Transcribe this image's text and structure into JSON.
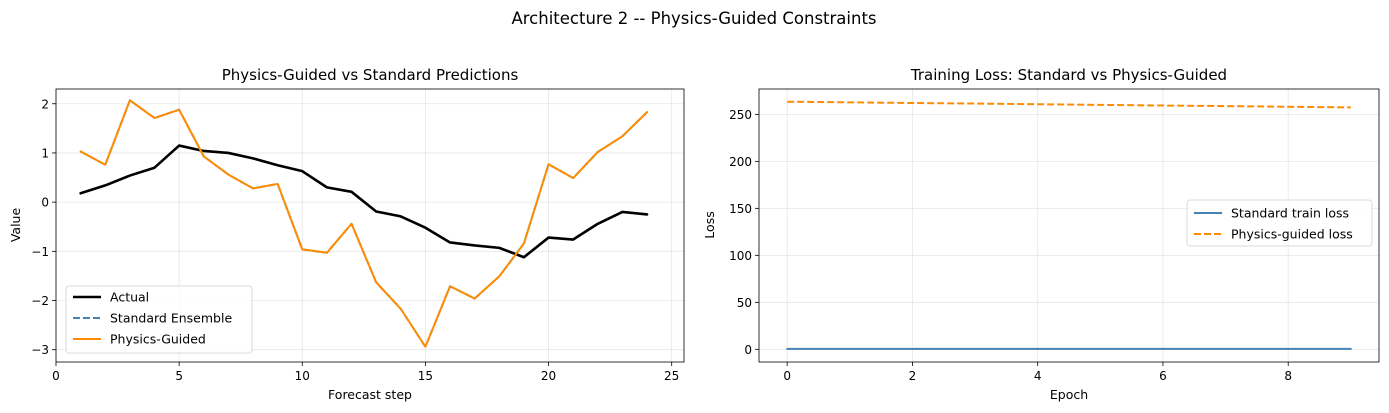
{
  "suptitle": "Architecture 2 -- Physics-Guided Constraints",
  "colors": {
    "actual": "#000000",
    "standard": "#4682b4",
    "physics": "#ff8c00"
  },
  "chart_data": [
    {
      "type": "line",
      "title": "Physics-Guided vs Standard Predictions",
      "xlabel": "Forecast step",
      "ylabel": "Value",
      "xlim": [
        0,
        25.5
      ],
      "ylim": [
        -3.25,
        2.3
      ],
      "xticks": [
        0,
        5,
        10,
        15,
        20,
        25
      ],
      "yticks": [
        -3,
        -2,
        -1,
        0,
        1,
        2
      ],
      "grid": true,
      "legend_position": "lower-left",
      "x": [
        1,
        2,
        3,
        4,
        5,
        6,
        7,
        8,
        9,
        10,
        11,
        12,
        13,
        14,
        15,
        16,
        17,
        18,
        19,
        20,
        21,
        22,
        23,
        24
      ],
      "series": [
        {
          "name": "Actual",
          "style": "solid",
          "color": "#000000",
          "values": [
            0.18,
            0.34,
            0.54,
            0.7,
            1.15,
            1.04,
            1.0,
            0.89,
            0.75,
            0.63,
            0.3,
            0.21,
            -0.19,
            -0.29,
            -0.52,
            -0.82,
            -0.88,
            -0.93,
            -1.12,
            -0.72,
            -0.76,
            -0.44,
            -0.2,
            -0.25
          ]
        },
        {
          "name": "Standard Ensemble",
          "style": "dashed",
          "color": "#4682b4",
          "values": [
            1.03,
            0.76,
            2.07,
            1.71,
            1.88,
            0.93,
            0.56,
            0.28,
            0.37,
            -0.96,
            -1.03,
            -0.44,
            -1.63,
            -2.17,
            -2.94,
            -1.71,
            -1.96,
            -1.51,
            -0.84,
            0.77,
            0.49,
            1.02,
            1.34,
            1.83
          ]
        },
        {
          "name": "Physics-Guided",
          "style": "solid",
          "color": "#ff8c00",
          "values": [
            1.03,
            0.76,
            2.07,
            1.71,
            1.88,
            0.93,
            0.56,
            0.28,
            0.37,
            -0.96,
            -1.03,
            -0.44,
            -1.63,
            -2.17,
            -2.94,
            -1.71,
            -1.96,
            -1.51,
            -0.84,
            0.77,
            0.49,
            1.02,
            1.34,
            1.83
          ]
        }
      ]
    },
    {
      "type": "line",
      "title": "Training Loss: Standard vs Physics-Guided",
      "xlabel": "Epoch",
      "ylabel": "Loss",
      "xlim": [
        -0.45,
        9.45
      ],
      "ylim": [
        -13.5,
        277
      ],
      "xticks": [
        0,
        2,
        4,
        6,
        8
      ],
      "yticks": [
        0,
        50,
        100,
        150,
        200,
        250
      ],
      "grid": true,
      "legend_position": "center-right",
      "x": [
        0,
        1,
        2,
        3,
        4,
        5,
        6,
        7,
        8,
        9
      ],
      "series": [
        {
          "name": "Standard train loss",
          "style": "solid",
          "color": "#4682b4",
          "values": [
            0.5,
            0.5,
            0.5,
            0.5,
            0.5,
            0.5,
            0.5,
            0.5,
            0.5,
            0.5
          ]
        },
        {
          "name": "Physics-guided loss",
          "style": "dashed",
          "color": "#ff8c00",
          "values": [
            263.5,
            262.8,
            262.1,
            261.5,
            260.8,
            260.1,
            259.4,
            258.8,
            258.1,
            257.4
          ]
        }
      ]
    }
  ]
}
